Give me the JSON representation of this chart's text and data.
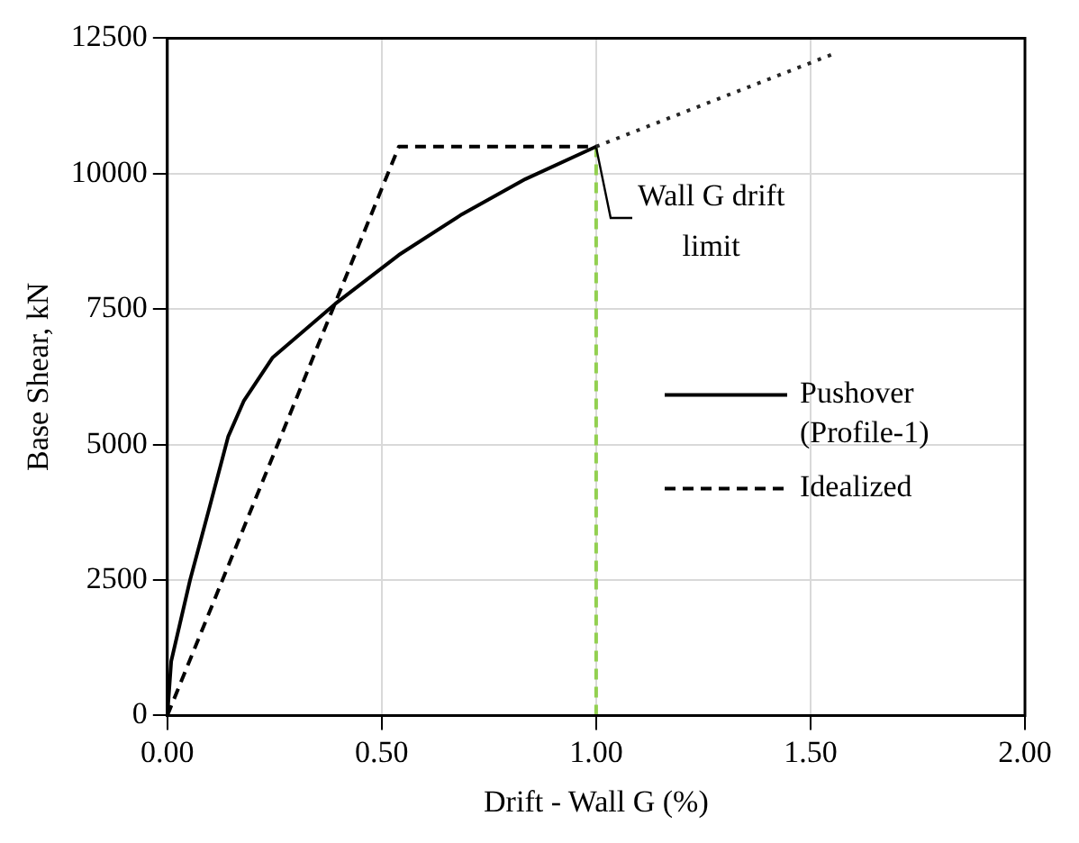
{
  "chart_data": {
    "type": "line",
    "xlabel": "Drift - Wall G (%)",
    "ylabel": "Base Shear, kN",
    "xlim": [
      0,
      2
    ],
    "xticks": [
      {
        "value": 0,
        "label": "0.00"
      },
      {
        "value": 0.5,
        "label": "0.50"
      },
      {
        "value": 1,
        "label": "1.00"
      },
      {
        "value": 1.5,
        "label": "1.50"
      },
      {
        "value": 2,
        "label": "2.00"
      }
    ],
    "ylim": [
      0,
      12500
    ],
    "yticks": [
      0,
      2500,
      5000,
      7500,
      10000,
      12500
    ],
    "grid": true,
    "legend": "right",
    "marker": "none",
    "series": [
      {
        "name": "Pushover (Profile-1)",
        "color": "#000000",
        "line_style": "solid",
        "x": [
          0,
          0.009,
          0.053,
          0.097,
          0.142,
          0.178,
          0.245,
          0.392,
          0.54,
          0.687,
          0.835,
          1.0
        ],
        "values": [
          0,
          1000,
          2500,
          3800,
          5150,
          5800,
          6600,
          7600,
          8500,
          9250,
          9900,
          10500
        ]
      },
      {
        "color": "#262626",
        "line_style": "dotted",
        "x": [
          1.0,
          1.55
        ],
        "values": [
          10500,
          12200
        ]
      },
      {
        "name": "Idealized",
        "color": "#000000",
        "line_style": "dashed",
        "x": [
          0,
          0.54,
          1.0
        ],
        "values": [
          0,
          10500,
          10500
        ]
      },
      {
        "color": "#92d050",
        "line_style": "dashed",
        "x": [
          1.0,
          1.0
        ],
        "values": [
          0,
          10500
        ]
      }
    ],
    "annotations": [
      {
        "text": "Wall G drift limit",
        "x": 1.0,
        "y": 10500
      }
    ]
  }
}
